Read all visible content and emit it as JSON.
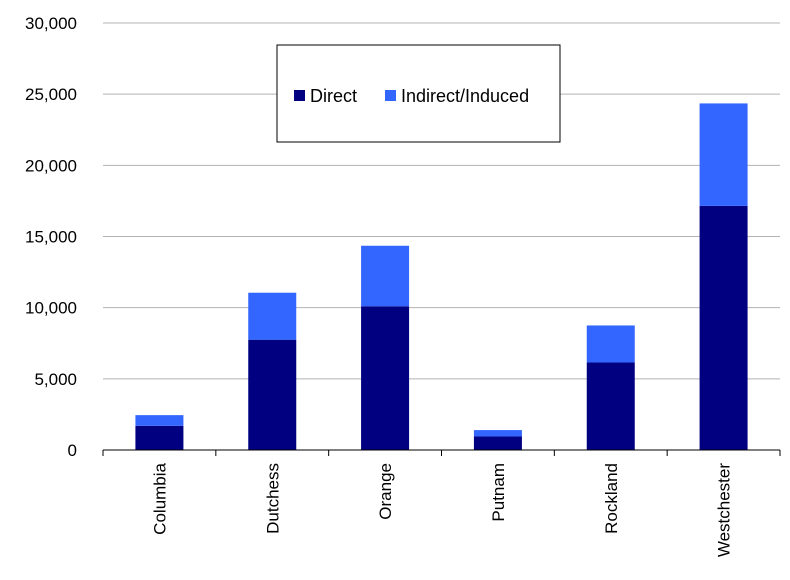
{
  "chart_data": {
    "type": "bar",
    "stacked": true,
    "title": "",
    "xlabel": "",
    "ylabel": "",
    "categories": [
      "Columbia",
      "Dutchess",
      "Orange",
      "Putnam",
      "Rockland",
      "Westchester"
    ],
    "series": [
      {
        "name": "Direct",
        "color": "#000080",
        "values": [
          1700,
          7750,
          10100,
          950,
          6150,
          17150
        ]
      },
      {
        "name": "Indirect/Induced",
        "color": "#3366FF",
        "values": [
          750,
          3300,
          4250,
          450,
          2600,
          7200
        ]
      }
    ],
    "ylim": [
      0,
      30000
    ],
    "yticks": [
      0,
      5000,
      10000,
      15000,
      20000,
      25000,
      30000
    ],
    "ytick_labels": [
      "0",
      "5,000",
      "10,000",
      "15,000",
      "20,000",
      "25,000",
      "30,000"
    ],
    "grid": true,
    "legend": "top-center"
  }
}
